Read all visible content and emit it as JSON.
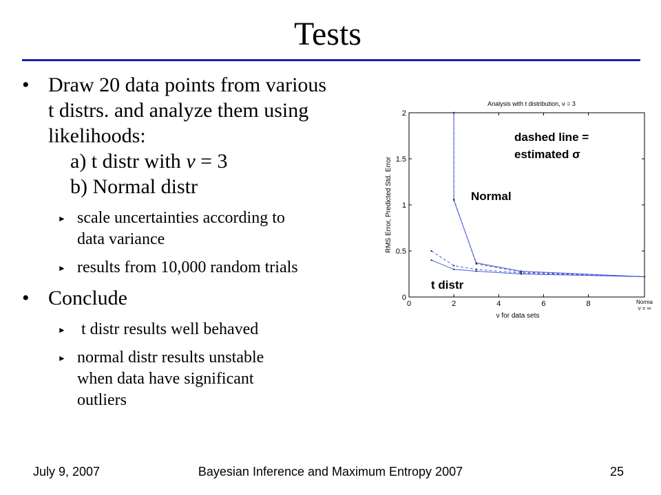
{
  "slide": {
    "title": "Tests",
    "bullets": {
      "b1": {
        "lines": [
          "Draw 20 data points from various",
          "t distrs. and analyze them using",
          "likelihoods:"
        ],
        "sub_a": "a) t distr with ",
        "sub_a_nu": "ν",
        "sub_a_rest": " = 3",
        "sub_b": "b) Normal distr"
      },
      "b1_subs": [
        {
          "lines": [
            "scale uncertainties according to",
            "data variance"
          ]
        },
        {
          "lines": [
            "results from 10,000 random trials"
          ]
        }
      ],
      "b2": {
        "text": "Conclude"
      },
      "b2_subs": [
        {
          "lines": [
            " t distr results well behaved"
          ]
        },
        {
          "lines": [
            "normal distr results unstable",
            "when data have significant",
            "outliers"
          ]
        }
      ]
    },
    "bullet_glyph": "•",
    "sub_glyph": "►"
  },
  "chart_data": {
    "type": "line",
    "title": "Analysis with t distribution, ν = 3",
    "xlabel": "ν for data sets",
    "ylabel": "RMS Error, Predicted Std. Error",
    "xlim": [
      0,
      10.5
    ],
    "ylim": [
      0,
      2
    ],
    "xticks": [
      "0",
      "2",
      "4",
      "6",
      "8"
    ],
    "xtick_values": [
      0,
      2,
      4,
      6,
      8
    ],
    "yticks": [
      "0",
      "0.5",
      "1",
      "1.5",
      "2"
    ],
    "ytick_values": [
      0,
      0.5,
      1,
      1.5,
      2
    ],
    "extra_xtick": {
      "label_top": "Norma",
      "label_bottom": "ν = ∞",
      "value": 10.5
    },
    "series": [
      {
        "style": "solid",
        "color": "#4a5ad8",
        "x": [
          2,
          2,
          3,
          5,
          10.5
        ],
        "y": [
          2.0,
          1.05,
          0.37,
          0.28,
          0.22
        ]
      },
      {
        "style": "dashed",
        "color": "#4a5ad8",
        "x": [
          2,
          2,
          3,
          5,
          10.5
        ],
        "y": [
          2.0,
          1.06,
          0.36,
          0.27,
          0.22
        ]
      },
      {
        "style": "solid",
        "color": "#4a5ad8",
        "x": [
          1,
          2,
          3,
          5,
          10.5
        ],
        "y": [
          0.4,
          0.3,
          0.28,
          0.25,
          0.22
        ]
      },
      {
        "style": "dashed",
        "color": "#4a5ad8",
        "x": [
          1,
          2,
          3,
          5,
          10.5
        ],
        "y": [
          0.5,
          0.34,
          0.3,
          0.26,
          0.22
        ]
      }
    ],
    "annotations": {
      "dashed_line_1": "dashed line =",
      "dashed_line_2": "estimated σ",
      "normal": "Normal",
      "t_distr": "t distr"
    }
  },
  "footer": {
    "date": "July 9, 2007",
    "conference": "Bayesian Inference and Maximum Entropy 2007",
    "page": "25"
  }
}
